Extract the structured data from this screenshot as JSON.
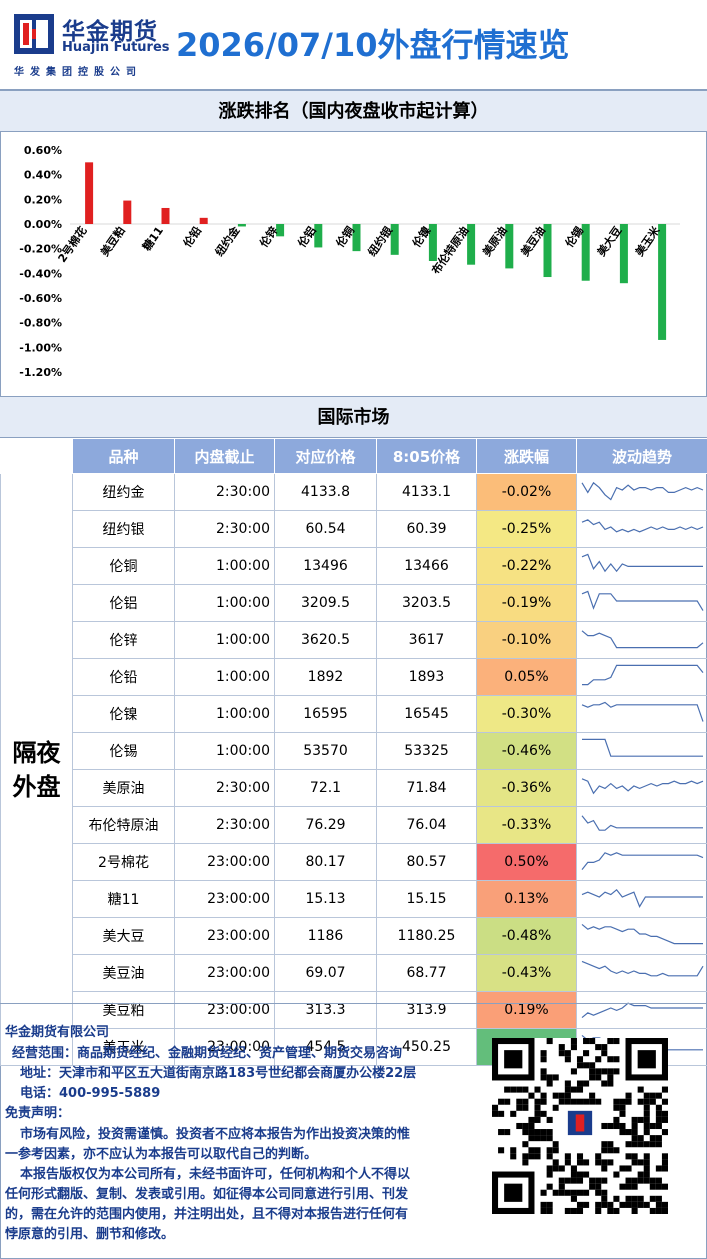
{
  "header": {
    "logo_cn": "华金期货",
    "logo_en": "Huajin Futures",
    "logo_sub": "华发集团控股公司",
    "title": "2026/07/10外盘行情速览"
  },
  "ranking_section": {
    "title": "涨跌排名（国内夜盘收市起计算）"
  },
  "chart_data": {
    "type": "bar",
    "categories": [
      "2号棉花",
      "美豆粕",
      "糖11",
      "伦铅",
      "纽约金",
      "伦锌",
      "伦铝",
      "伦铜",
      "纽约银",
      "伦镍",
      "布伦特原油",
      "美原油",
      "美豆油",
      "伦锡",
      "美大豆",
      "美玉米"
    ],
    "values": [
      0.5,
      0.19,
      0.13,
      0.05,
      -0.02,
      -0.1,
      -0.19,
      -0.22,
      -0.25,
      -0.3,
      -0.33,
      -0.36,
      -0.43,
      -0.46,
      -0.48,
      -0.94
    ],
    "yticks": [
      "0.60%",
      "0.40%",
      "0.20%",
      "0.00%",
      "-0.20%",
      "-0.40%",
      "-0.60%",
      "-0.80%",
      "-1.00%",
      "-1.20%"
    ],
    "ylim": [
      -1.2,
      0.6
    ],
    "positive_color": "#e02020",
    "negative_color": "#1fae4b"
  },
  "intl_section": {
    "title": "国际市场"
  },
  "table": {
    "headers": [
      "品种",
      "内盘截止",
      "对应价格",
      "8:05价格",
      "涨跌幅",
      "波动趋势"
    ],
    "group_label_line1": "隔夜",
    "group_label_line2": "外盘",
    "rows": [
      {
        "name": "纽约金",
        "cutoff": "2:30:00",
        "price": "4133.8",
        "price805": "4133.1",
        "change": "-0.02%",
        "color": "#fbbd79",
        "spark": [
          0.2,
          0.6,
          0.2,
          0.4,
          0.7,
          0.9,
          0.4,
          0.5,
          0.3,
          0.5,
          0.4,
          0.4,
          0.5,
          0.4,
          0.4,
          0.6,
          0.6,
          0.5,
          0.4,
          0.5,
          0.4,
          0.5
        ]
      },
      {
        "name": "纽约银",
        "cutoff": "2:30:00",
        "price": "60.54",
        "price805": "60.39",
        "change": "-0.25%",
        "color": "#f4e884",
        "spark": [
          0.3,
          0.2,
          0.4,
          0.3,
          0.6,
          0.5,
          0.7,
          0.6,
          0.7,
          0.6,
          0.7,
          0.6,
          0.5,
          0.6,
          0.5,
          0.6,
          0.6,
          0.5,
          0.6,
          0.5,
          0.6,
          0.5
        ]
      },
      {
        "name": "伦铜",
        "cutoff": "1:00:00",
        "price": "13496",
        "price805": "13466",
        "change": "-0.22%",
        "color": "#f6e283",
        "spark": [
          0.2,
          0.1,
          0.7,
          0.4,
          0.8,
          0.5,
          0.8,
          0.5,
          0.6,
          0.6,
          0.6,
          0.6,
          0.6,
          0.6,
          0.6,
          0.6,
          0.6,
          0.6,
          0.6,
          0.6,
          0.6,
          0.6
        ]
      },
      {
        "name": "伦铝",
        "cutoff": "1:00:00",
        "price": "3209.5",
        "price805": "3203.5",
        "change": "-0.19%",
        "color": "#f8dc81",
        "spark": [
          0.2,
          0.1,
          0.8,
          0.2,
          0.2,
          0.2,
          0.5,
          0.5,
          0.5,
          0.5,
          0.5,
          0.5,
          0.5,
          0.5,
          0.5,
          0.5,
          0.5,
          0.5,
          0.5,
          0.5,
          0.5,
          0.9
        ]
      },
      {
        "name": "伦锌",
        "cutoff": "1:00:00",
        "price": "3620.5",
        "price805": "3617",
        "change": "-0.10%",
        "color": "#f9d080",
        "spark": [
          0.2,
          0.4,
          0.4,
          0.3,
          0.4,
          0.5,
          0.9,
          0.9,
          0.9,
          0.9,
          0.9,
          0.9,
          0.9,
          0.9,
          0.9,
          0.9,
          0.9,
          0.9,
          0.9,
          0.9,
          0.9,
          0.7
        ]
      },
      {
        "name": "伦铅",
        "cutoff": "1:00:00",
        "price": "1892",
        "price805": "1893",
        "change": "0.05%",
        "color": "#fbb17b",
        "spark": [
          0.9,
          0.9,
          0.7,
          0.7,
          0.7,
          0.6,
          0.1,
          0.1,
          0.1,
          0.1,
          0.1,
          0.1,
          0.1,
          0.1,
          0.1,
          0.1,
          0.1,
          0.1,
          0.1,
          0.1,
          0.1,
          0.4
        ]
      },
      {
        "name": "伦镍",
        "cutoff": "1:00:00",
        "price": "16595",
        "price805": "16545",
        "change": "-0.30%",
        "color": "#eee886",
        "spark": [
          0.2,
          0.3,
          0.2,
          0.2,
          0.1,
          0.3,
          0.2,
          0.2,
          0.2,
          0.2,
          0.2,
          0.2,
          0.2,
          0.2,
          0.2,
          0.2,
          0.2,
          0.2,
          0.2,
          0.2,
          0.2,
          0.9
        ]
      },
      {
        "name": "伦锡",
        "cutoff": "1:00:00",
        "price": "53570",
        "price805": "53325",
        "change": "-0.46%",
        "color": "#d2e084",
        "spark": [
          0.1,
          0.1,
          0.1,
          0.1,
          0.1,
          0.8,
          0.8,
          0.8,
          0.8,
          0.8,
          0.8,
          0.8,
          0.8,
          0.8,
          0.8,
          0.8,
          0.8,
          0.8,
          0.8,
          0.8,
          0.8,
          0.8
        ]
      },
      {
        "name": "美原油",
        "cutoff": "2:30:00",
        "price": "72.1",
        "price805": "71.84",
        "change": "-0.36%",
        "color": "#e4e586",
        "spark": [
          0.2,
          0.3,
          0.8,
          0.5,
          0.6,
          0.4,
          0.6,
          0.5,
          0.7,
          0.5,
          0.6,
          0.5,
          0.4,
          0.5,
          0.4,
          0.4,
          0.3,
          0.4,
          0.4,
          0.3,
          0.4,
          0.3
        ]
      },
      {
        "name": "布伦特原油",
        "cutoff": "2:30:00",
        "price": "76.29",
        "price805": "76.04",
        "change": "-0.33%",
        "color": "#e8e686",
        "spark": [
          0.2,
          0.5,
          0.4,
          0.8,
          0.8,
          0.6,
          0.7,
          0.7,
          0.7,
          0.7,
          0.7,
          0.7,
          0.7,
          0.7,
          0.7,
          0.7,
          0.7,
          0.7,
          0.7,
          0.7,
          0.7,
          0.7
        ]
      },
      {
        "name": "2号棉花",
        "cutoff": "23:00:00",
        "price": "80.17",
        "price805": "80.57",
        "change": "0.50%",
        "color": "#f56b6b",
        "spark": [
          0.9,
          0.6,
          0.6,
          0.5,
          0.2,
          0.3,
          0.2,
          0.3,
          0.3,
          0.3,
          0.3,
          0.3,
          0.3,
          0.3,
          0.3,
          0.3,
          0.3,
          0.3,
          0.3,
          0.3,
          0.3,
          0.4
        ]
      },
      {
        "name": "糖11",
        "cutoff": "23:00:00",
        "price": "15.13",
        "price805": "15.15",
        "change": "0.13%",
        "color": "#f9a079",
        "spark": [
          0.4,
          0.3,
          0.4,
          0.5,
          0.3,
          0.4,
          0.2,
          0.5,
          0.4,
          0.3,
          0.9,
          0.5,
          0.5,
          0.5,
          0.5,
          0.5,
          0.5,
          0.5,
          0.5,
          0.5,
          0.5,
          0.5
        ]
      },
      {
        "name": "美大豆",
        "cutoff": "23:00:00",
        "price": "1186",
        "price805": "1180.25",
        "change": "-0.48%",
        "color": "#cbde84",
        "spark": [
          0.1,
          0.3,
          0.2,
          0.3,
          0.2,
          0.2,
          0.3,
          0.4,
          0.3,
          0.3,
          0.5,
          0.5,
          0.6,
          0.6,
          0.7,
          0.8,
          0.9,
          0.9,
          0.9,
          0.9,
          0.9,
          0.9
        ]
      },
      {
        "name": "美豆油",
        "cutoff": "23:00:00",
        "price": "69.07",
        "price805": "68.77",
        "change": "-0.43%",
        "color": "#d8e185",
        "spark": [
          0.1,
          0.2,
          0.3,
          0.4,
          0.3,
          0.5,
          0.6,
          0.5,
          0.6,
          0.5,
          0.6,
          0.6,
          0.7,
          0.7,
          0.6,
          0.7,
          0.7,
          0.7,
          0.7,
          0.7,
          0.7,
          0.3
        ]
      },
      {
        "name": "美豆粕",
        "cutoff": "23:00:00",
        "price": "313.3",
        "price805": "313.9",
        "change": "0.19%",
        "color": "#fa9f77",
        "spark": [
          0.9,
          0.7,
          0.8,
          0.7,
          0.6,
          0.5,
          0.6,
          0.5,
          0.3,
          0.4,
          0.4,
          0.4,
          0.5,
          0.5,
          0.5,
          0.5,
          0.5,
          0.5,
          0.5,
          0.5,
          0.5,
          0.5
        ]
      },
      {
        "name": "美玉米",
        "cutoff": "23:00:00",
        "price": "454.5",
        "price805": "450.25",
        "change": "-0.94%",
        "color": "#63be7b",
        "spark": [
          0.1,
          0.3,
          0.2,
          0.2,
          0.3,
          0.4,
          0.5,
          0.4,
          0.5,
          0.5,
          0.6,
          0.6,
          0.7,
          0.6,
          0.7,
          0.7,
          0.7,
          0.7,
          0.7,
          0.7,
          0.7,
          0.7
        ]
      }
    ]
  },
  "footer": {
    "company": "华金期货有限公司",
    "scope": "经营范围：商品期货经纪、金融期货经纪、资产管理、期货交易咨询",
    "address": "地址：天津市和平区五大道街南京路183号世纪都会商厦办公楼22层",
    "phone": "电话：400-995-5889",
    "disclaimer_title": "免责声明：",
    "d1": "市场有风险，投资需谨慎。投资者不应将本报告为作出投资决策的惟",
    "d2": "一参考因素，亦不应认为本报告可以取代自己的判断。",
    "d3": "本报告版权仅为本公司所有，未经书面许可，任何机构和个人不得以",
    "d4": "任何形式翻版、复制、发表或引用。如征得本公司同意进行引用、刊发",
    "d5": "的，需在允许的范围内使用，并注明出处，且不得对本报告进行任何有",
    "d6": "悖原意的引用、删节和修改。"
  }
}
